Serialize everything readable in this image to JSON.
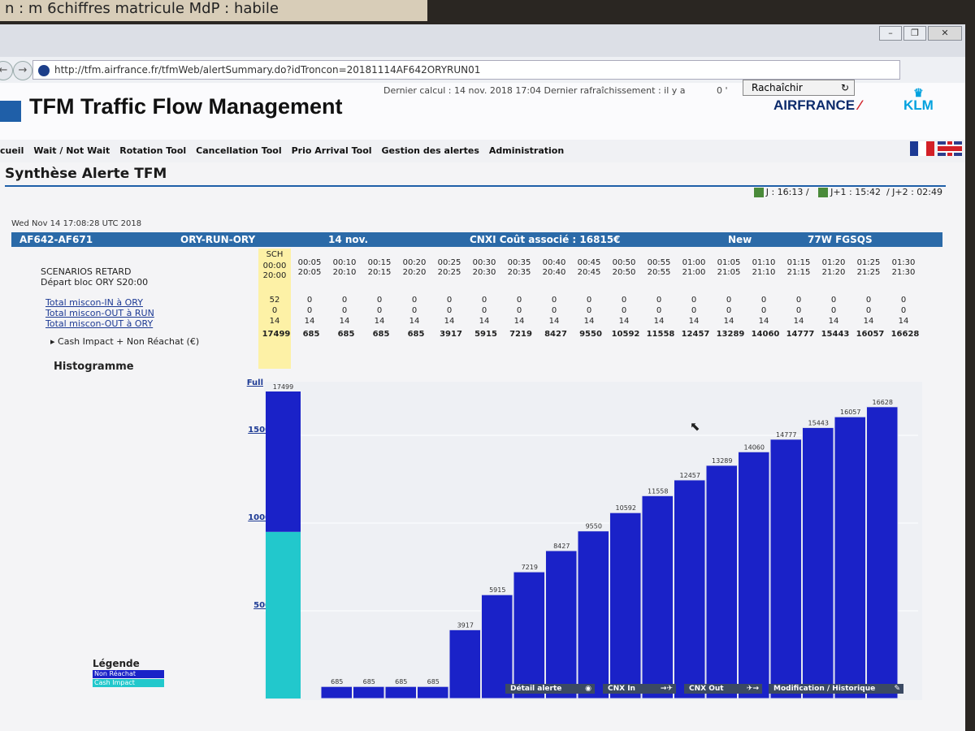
{
  "note": {
    "text": "n : m 6chiffres matricule   MdP : habile"
  },
  "browser": {
    "url": "http://tfm.airfrance.fr/tfmWeb/alertSummary.do?idTroncon=20181114AF642ORYRUN01",
    "back_icon": "back-arrow-icon",
    "forward_icon": "forward-arrow-icon"
  },
  "header": {
    "title": "TFM Traffic Flow Management",
    "calc_info": "Dernier calcul : 14 nov. 2018 17:04 Dernier rafraîchissement : il y a",
    "refresh_age": "0 '",
    "refresh_label": "Rachaîchir",
    "airfrance": "AIRFRANCE",
    "klm": "KLM"
  },
  "menu": [
    "cueil",
    "Wait / Not Wait",
    "Rotation Tool",
    "Cancellation Tool",
    "Prio Arrival Tool",
    "Gestion des alertes",
    "Administration"
  ],
  "section": {
    "title": "Synthèse Alerte TFM"
  },
  "jtimes": {
    "j": "J : 16:13",
    "j1": "J+1 : 15:42",
    "j2": "/ J+2 : 02:49",
    "sep": "/"
  },
  "alert": {
    "timestamp": "Wed Nov 14 17:08:28 UTC 2018",
    "flights": "AF642-AF671",
    "route": "ORY-RUN-ORY",
    "date": "14 nov.",
    "cost": "CNXI  Coût associé :  16815€",
    "status": "New",
    "aircraft": "77W  FGSQS"
  },
  "scenarios": {
    "label1": "SCENARIOS RETARD",
    "label2": "Départ bloc ORY S20:00",
    "sch": "SCH",
    "delays": [
      "00:00",
      "00:05",
      "00:10",
      "00:15",
      "00:20",
      "00:25",
      "00:30",
      "00:35",
      "00:40",
      "00:45",
      "00:50",
      "00:55",
      "01:00",
      "01:05",
      "01:10",
      "01:15",
      "01:20",
      "01:25",
      "01:30"
    ],
    "times": [
      "20:00",
      "20:05",
      "20:10",
      "20:15",
      "20:20",
      "20:25",
      "20:30",
      "20:35",
      "20:40",
      "20:45",
      "20:50",
      "20:55",
      "21:00",
      "21:05",
      "21:10",
      "21:15",
      "21:20",
      "21:25",
      "21:30"
    ],
    "rows": [
      {
        "label": "Total miscon-IN à ORY",
        "values": [
          "52",
          "0",
          "0",
          "0",
          "0",
          "0",
          "0",
          "0",
          "0",
          "0",
          "0",
          "0",
          "0",
          "0",
          "0",
          "0",
          "0",
          "0",
          "0"
        ]
      },
      {
        "label": "Total miscon-OUT à RUN",
        "values": [
          "0",
          "0",
          "0",
          "0",
          "0",
          "0",
          "0",
          "0",
          "0",
          "0",
          "0",
          "0",
          "0",
          "0",
          "0",
          "0",
          "0",
          "0",
          "0"
        ]
      },
      {
        "label": "Total miscon-OUT à ORY",
        "values": [
          "14",
          "14",
          "14",
          "14",
          "14",
          "14",
          "14",
          "14",
          "14",
          "14",
          "14",
          "14",
          "14",
          "14",
          "14",
          "14",
          "14",
          "14",
          "14"
        ]
      }
    ],
    "cash_label": "▸ Cash Impact + Non Réachat (€)",
    "cash_values": [
      "17499",
      "685",
      "685",
      "685",
      "685",
      "3917",
      "5915",
      "7219",
      "8427",
      "9550",
      "10592",
      "11558",
      "12457",
      "13289",
      "14060",
      "14777",
      "15443",
      "16057",
      "16628"
    ]
  },
  "histogram": {
    "title": "Histogramme",
    "full_label": "Full"
  },
  "chart_data": {
    "type": "bar",
    "categories": [
      "SCH",
      "00:05",
      "00:10",
      "00:15",
      "00:20",
      "00:25",
      "00:30",
      "00:35",
      "00:40",
      "00:45",
      "00:50",
      "00:55",
      "01:00",
      "01:05",
      "01:10",
      "01:15",
      "01:20",
      "01:25",
      "01:30"
    ],
    "values": [
      17499,
      685,
      685,
      685,
      685,
      3917,
      5915,
      7219,
      8427,
      9550,
      10592,
      11558,
      12457,
      13289,
      14060,
      14777,
      15443,
      16057,
      16628
    ],
    "sch_split": {
      "cash_impact": 9500,
      "non_reachat": 7999
    },
    "yticks": [
      5000,
      10000,
      15000
    ],
    "ylim": [
      0,
      17499
    ],
    "colors": {
      "non_reachat": "#1a22c8",
      "cash_impact": "#22c8cc"
    }
  },
  "legend": {
    "title": "Légende",
    "items": [
      {
        "label": "Non Réachat",
        "color": "#1a22c8"
      },
      {
        "label": "Cash Impact",
        "color": "#22c8cc"
      }
    ]
  },
  "actions": {
    "detail": "Détail alerte",
    "cnx_in": "CNX In",
    "cnx_out": "CNX Out",
    "modif": "Modification / Historique"
  }
}
